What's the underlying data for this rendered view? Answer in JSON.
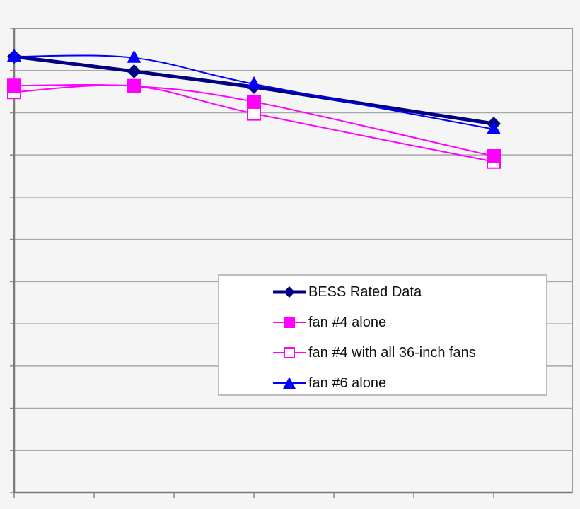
{
  "chart_data": {
    "type": "line",
    "title": "",
    "xlabel": "",
    "ylabel": "",
    "x_tick_labels_visible": false,
    "y_tick_labels_visible": false,
    "xlim": [
      0,
      7
    ],
    "ylim": [
      0,
      11
    ],
    "grid": {
      "horizontal": true,
      "vertical": false,
      "count": 11
    },
    "legend_position": "lower-right inside plot",
    "x": [
      0,
      1.5,
      3,
      6
    ],
    "series": [
      {
        "name": "BESS Rated Data",
        "color": "#000080",
        "marker": "diamond",
        "line_width": 5,
        "smooth": false,
        "values": [
          10.33,
          9.98,
          9.61,
          8.74
        ]
      },
      {
        "name": "fan #4 alone",
        "color": "#ff00ff",
        "marker": "square-filled",
        "line_width": 2,
        "smooth": true,
        "values": [
          9.64,
          9.63,
          9.26,
          7.97
        ]
      },
      {
        "name": "fan #4 with all 36-inch fans",
        "color": "#ff00ff",
        "marker": "square-open",
        "line_width": 2,
        "smooth": true,
        "values": [
          9.49,
          9.63,
          8.98,
          7.84
        ]
      },
      {
        "name": "fan #6 alone",
        "color": "#0000ff",
        "marker": "triangle",
        "line_width": 2,
        "smooth": true,
        "values": [
          10.33,
          10.3,
          9.68,
          8.61
        ]
      }
    ]
  },
  "legend": {
    "items": [
      {
        "label": "BESS Rated Data"
      },
      {
        "label": "fan #4 alone"
      },
      {
        "label": "fan #4 with all 36-inch fans"
      },
      {
        "label": "fan #6 alone"
      }
    ]
  },
  "style": {
    "background": "#f5f5f5",
    "plot_border": "#9a9a9a",
    "gridline": "#a8a8a8"
  }
}
